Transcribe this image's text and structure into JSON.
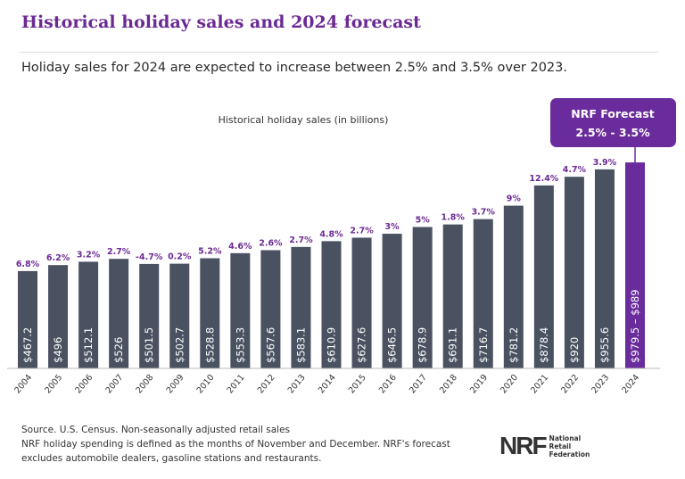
{
  "title": "Historical holiday sales and 2024 forecast",
  "subtitle": "Holiday sales for 2024 are expected to increase between 2.5% and 3.5% over 2023.",
  "chart_data": {
    "type": "bar",
    "title": "Historical holiday sales (in billions)",
    "categories": [
      "2004",
      "2005",
      "2006",
      "2007",
      "2008",
      "2009",
      "2010",
      "2011",
      "2012",
      "2013",
      "2014",
      "2015",
      "2016",
      "2017",
      "2018",
      "2019",
      "2020",
      "2021",
      "2022",
      "2023",
      "2024"
    ],
    "values": [
      467.2,
      496,
      512.1,
      526,
      501.5,
      502.7,
      528.8,
      553.3,
      567.6,
      583.1,
      610.9,
      627.6,
      646.5,
      678.9,
      691.1,
      716.7,
      781.2,
      878.4,
      920,
      955.6,
      989
    ],
    "value_labels": [
      "$467.2",
      "$496",
      "$512.1",
      "$526",
      "$501.5",
      "$502.7",
      "$528.8",
      "$553.3",
      "$567.6",
      "$583.1",
      "$610.9",
      "$627.6",
      "$646.5",
      "$678.9",
      "$691.1",
      "$716.7",
      "$781.2",
      "$878.4",
      "$920",
      "$955.6",
      "$979.5 – $989"
    ],
    "growth_labels": [
      "6.8%",
      "6.2%",
      "3.2%",
      "2.7%",
      "-4.7%",
      "0.2%",
      "5.2%",
      "4.6%",
      "2.6%",
      "2.7%",
      "4.8%",
      "2.7%",
      "3%",
      "5%",
      "1.8%",
      "3.7%",
      "9%",
      "12.4%",
      "4.7%",
      "3.9%",
      ""
    ],
    "forecast_range": [
      979.5,
      989
    ],
    "annotation": {
      "line1": "NRF Forecast",
      "line2": "2.5% - 3.5%"
    },
    "colors": {
      "bar": "#4a5261",
      "forecast": "#6a2c9c",
      "growth": "#6b2a93"
    },
    "ylim": [
      0,
      1000
    ]
  },
  "footer": {
    "line1": "Source. U.S. Census. Non-seasonally adjusted retail sales",
    "line2": "NRF holiday spending is defined as the months of November and December. NRF's forecast",
    "line3": "excludes automobile dealers, gasoline stations and restaurants."
  },
  "logo": {
    "mark": "NRF",
    "line1": "National",
    "line2": "Retail",
    "line3": "Federation"
  }
}
